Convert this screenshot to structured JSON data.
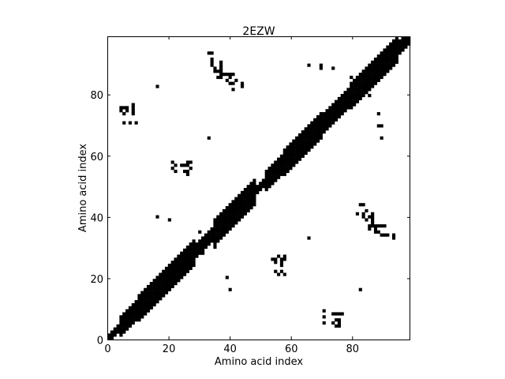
{
  "chart_data": {
    "type": "heatmap",
    "subtype": "binary contact map",
    "title": "2EZW",
    "xlabel": "Amino acid index",
    "ylabel": "Amino acid index",
    "xlim": [
      0,
      99
    ],
    "ylim": [
      0,
      99
    ],
    "xticks": [
      0,
      20,
      40,
      60,
      80
    ],
    "yticks": [
      0,
      20,
      40,
      60,
      80
    ],
    "grid": false,
    "colors": {
      "contact": "#000000",
      "background": "#ffffff"
    },
    "diagonal_band": [
      {
        "from": 0,
        "to": 4,
        "halfwidth": 1
      },
      {
        "from": 4,
        "to": 10,
        "halfwidth": 3
      },
      {
        "from": 10,
        "to": 28,
        "halfwidth": 4
      },
      {
        "from": 28,
        "to": 35,
        "halfwidth": 2
      },
      {
        "from": 35,
        "to": 48,
        "halfwidth": 4
      },
      {
        "from": 48,
        "to": 52,
        "halfwidth": 1
      },
      {
        "from": 52,
        "to": 58,
        "halfwidth": 3
      },
      {
        "from": 58,
        "to": 70,
        "halfwidth": 4
      },
      {
        "from": 70,
        "to": 80,
        "halfwidth": 3
      },
      {
        "from": 80,
        "to": 95,
        "halfwidth": 4
      },
      {
        "from": 95,
        "to": 99,
        "halfwidth": 2
      }
    ],
    "contacts": [
      [
        6,
        75
      ],
      [
        6,
        76
      ],
      [
        5,
        76
      ],
      [
        8,
        74
      ],
      [
        8,
        75
      ],
      [
        8,
        77
      ],
      [
        7,
        71
      ],
      [
        9,
        71
      ],
      [
        16,
        83
      ],
      [
        33,
        94
      ],
      [
        34,
        94
      ],
      [
        34,
        92
      ],
      [
        35,
        89
      ],
      [
        36,
        88
      ],
      [
        37,
        87
      ],
      [
        36,
        86
      ],
      [
        37,
        86
      ],
      [
        38,
        87
      ],
      [
        39,
        87
      ],
      [
        40,
        87
      ],
      [
        41,
        87
      ],
      [
        39,
        85
      ],
      [
        40,
        84
      ],
      [
        42,
        85
      ],
      [
        44,
        84
      ],
      [
        33,
        66
      ],
      [
        22,
        57
      ],
      [
        22,
        55
      ],
      [
        24,
        57
      ],
      [
        25,
        57
      ],
      [
        25,
        55
      ],
      [
        26,
        55
      ],
      [
        26,
        57
      ],
      [
        27,
        56
      ],
      [
        16,
        40
      ],
      [
        20,
        39
      ],
      [
        70,
        90
      ],
      [
        74,
        89
      ],
      [
        80,
        86
      ],
      [
        89,
        70
      ],
      [
        90,
        66
      ],
      [
        54,
        26
      ],
      [
        55,
        25
      ],
      [
        57,
        25
      ],
      [
        58,
        26
      ],
      [
        58,
        27
      ],
      [
        56,
        21
      ],
      [
        58,
        21
      ],
      [
        39,
        20
      ],
      [
        40,
        16
      ],
      [
        66,
        33
      ],
      [
        30,
        35
      ],
      [
        28,
        31
      ],
      [
        83,
        44
      ],
      [
        84,
        44
      ],
      [
        82,
        41
      ],
      [
        84,
        41
      ],
      [
        86,
        40
      ],
      [
        87,
        39
      ],
      [
        86,
        37
      ],
      [
        87,
        37
      ],
      [
        88,
        37
      ],
      [
        89,
        37
      ],
      [
        90,
        37
      ],
      [
        91,
        37
      ],
      [
        88,
        35
      ],
      [
        90,
        34
      ],
      [
        91,
        34
      ],
      [
        94,
        34
      ],
      [
        71,
        7
      ],
      [
        71,
        5
      ],
      [
        74,
        8
      ],
      [
        75,
        8
      ],
      [
        76,
        8
      ],
      [
        74,
        5
      ],
      [
        75,
        4
      ],
      [
        76,
        4
      ],
      [
        83,
        16
      ]
    ]
  }
}
